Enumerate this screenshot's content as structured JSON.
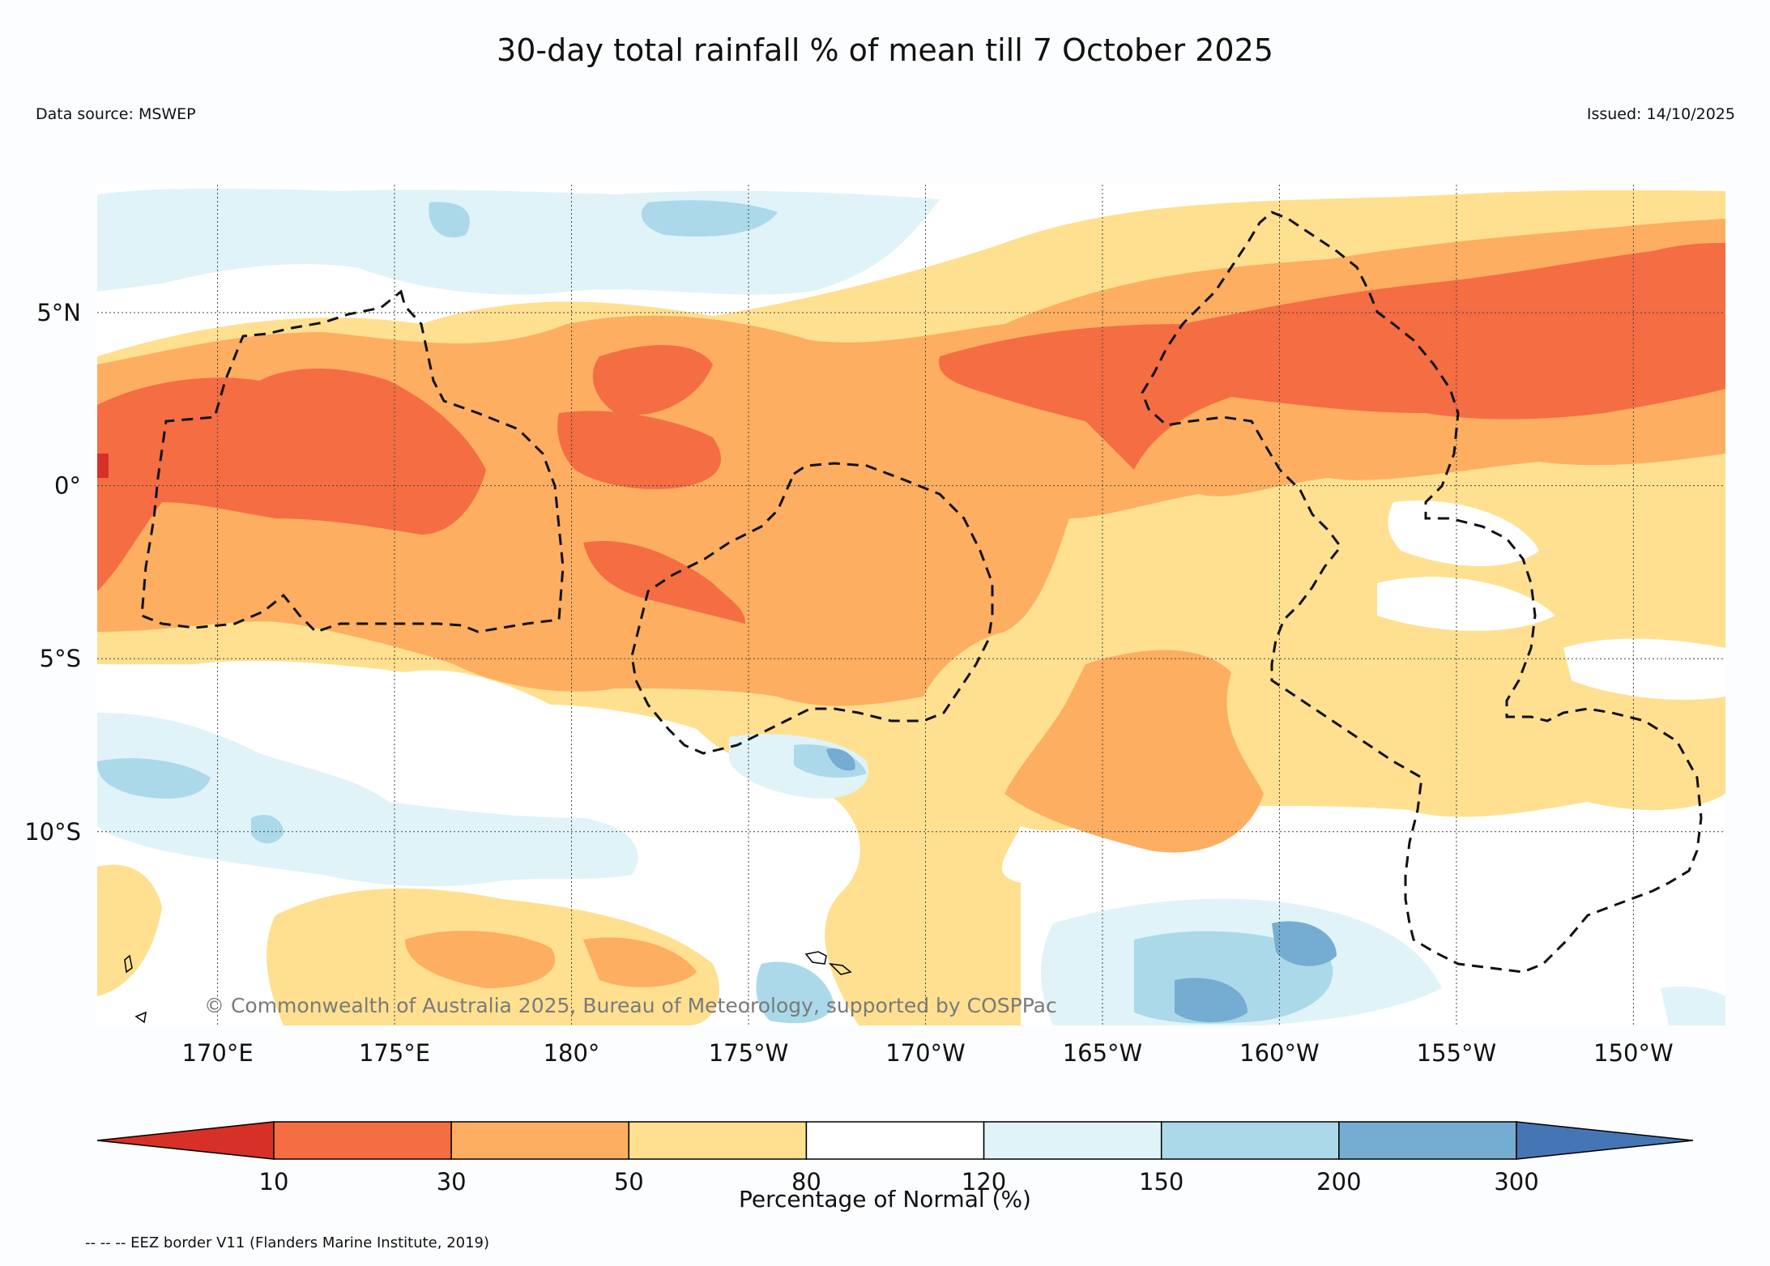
{
  "map": {
    "title": "30-day total rainfall % of mean till 7 October 2025",
    "data_source": "Data source: MSWEP",
    "issued": "Issued: 14/10/2025",
    "copyright": "© Commonwealth of Australia 2025, Bureau of Meteorology, supported by COSPPac",
    "eez_note": "-- -- -- EEZ border V11 (Flanders Marine Institute, 2019)",
    "lon_labels": [
      "170°E",
      "175°E",
      "180°",
      "175°W",
      "170°W",
      "165°W",
      "160°W",
      "155°W",
      "150°W"
    ],
    "lat_labels": [
      "5°N",
      "0°",
      "5°S",
      "10°S"
    ],
    "region": {
      "lon_min": 166.6,
      "lon_max": 212.6,
      "lat_min": -15.6,
      "lat_max": 8.7
    }
  },
  "colorbar": {
    "title": "Percentage of Normal (%)",
    "tick_labels": [
      "10",
      "30",
      "50",
      "80",
      "120",
      "150",
      "200",
      "300"
    ],
    "bins": [
      {
        "range": "<10",
        "color": "#d73027"
      },
      {
        "range": "10-30",
        "color": "#f46d43"
      },
      {
        "range": "30-50",
        "color": "#fdae61"
      },
      {
        "range": "50-80",
        "color": "#fee090"
      },
      {
        "range": "80-120",
        "color": "#ffffff"
      },
      {
        "range": "120-150",
        "color": "#e0f3f8"
      },
      {
        "range": "150-200",
        "color": "#abd9e9"
      },
      {
        "range": "200-300",
        "color": "#74add1"
      },
      {
        "range": ">300",
        "color": "#4575b4"
      }
    ]
  }
}
